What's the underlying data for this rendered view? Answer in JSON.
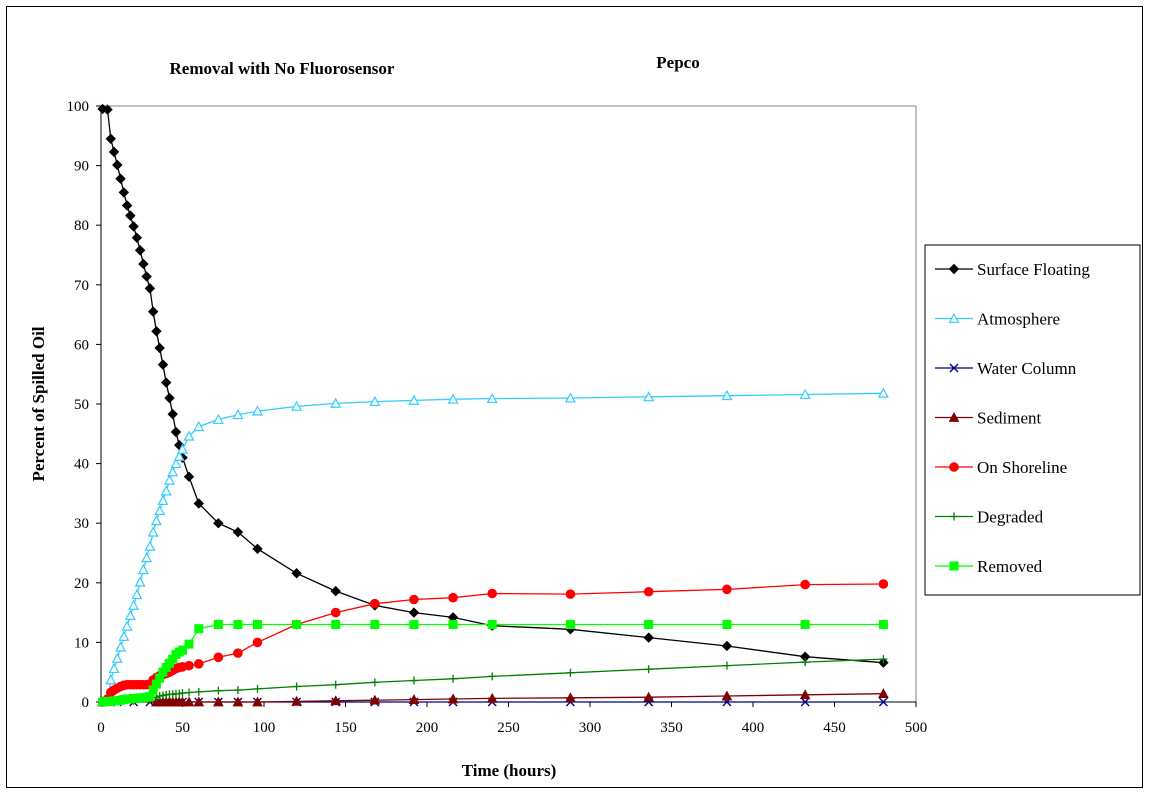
{
  "chart_data": {
    "type": "line",
    "title_left": "Removal with No Fluorosensor",
    "title_right": "Pepco",
    "xlabel": "Time (hours)",
    "ylabel": "Percent of Spilled Oil",
    "xlim": [
      0,
      500
    ],
    "ylim": [
      0,
      100
    ],
    "xticks": [
      0,
      50,
      100,
      150,
      200,
      250,
      300,
      350,
      400,
      450,
      500
    ],
    "yticks": [
      0,
      10,
      20,
      30,
      40,
      50,
      60,
      70,
      80,
      90,
      100
    ],
    "grid": false,
    "legend_position": "right",
    "series": [
      {
        "name": "Surface Floating",
        "color": "#000000",
        "marker": "diamond",
        "points": [
          [
            1,
            99.5
          ],
          [
            4,
            99.4
          ],
          [
            6,
            94.5
          ],
          [
            8,
            92.3
          ],
          [
            10,
            90.1
          ],
          [
            12,
            87.8
          ],
          [
            14,
            85.5
          ],
          [
            16,
            83.3
          ],
          [
            18,
            81.6
          ],
          [
            20,
            79.8
          ],
          [
            22,
            77.9
          ],
          [
            24,
            75.8
          ],
          [
            26,
            73.5
          ],
          [
            28,
            71.4
          ],
          [
            30,
            69.4
          ],
          [
            32,
            65.5
          ],
          [
            34,
            62.2
          ],
          [
            36,
            59.4
          ],
          [
            38,
            56.6
          ],
          [
            40,
            53.6
          ],
          [
            42,
            51.0
          ],
          [
            44,
            48.3
          ],
          [
            46,
            45.3
          ],
          [
            48,
            43.1
          ],
          [
            50,
            41.0
          ],
          [
            54,
            37.8
          ],
          [
            60,
            33.3
          ],
          [
            72,
            30.0
          ],
          [
            84,
            28.5
          ],
          [
            96,
            25.7
          ],
          [
            120,
            21.6
          ],
          [
            144,
            18.6
          ],
          [
            168,
            16.2
          ],
          [
            192,
            15.0
          ],
          [
            216,
            14.2
          ],
          [
            240,
            12.8
          ],
          [
            288,
            12.2
          ],
          [
            336,
            10.8
          ],
          [
            384,
            9.4
          ],
          [
            432,
            7.6
          ],
          [
            480,
            6.6
          ]
        ]
      },
      {
        "name": "Atmosphere",
        "color": "#33ccff",
        "marker": "triangle-open",
        "points": [
          [
            1,
            0
          ],
          [
            4,
            0.5
          ],
          [
            6,
            3.7
          ],
          [
            8,
            5.6
          ],
          [
            10,
            7.3
          ],
          [
            12,
            9.2
          ],
          [
            14,
            11.0
          ],
          [
            16,
            12.7
          ],
          [
            18,
            14.5
          ],
          [
            20,
            16.2
          ],
          [
            22,
            18.0
          ],
          [
            24,
            20.1
          ],
          [
            26,
            22.2
          ],
          [
            28,
            24.2
          ],
          [
            30,
            26.1
          ],
          [
            32,
            28.5
          ],
          [
            34,
            30.4
          ],
          [
            36,
            32.1
          ],
          [
            38,
            33.8
          ],
          [
            40,
            35.4
          ],
          [
            42,
            37.2
          ],
          [
            44,
            38.6
          ],
          [
            46,
            40.0
          ],
          [
            48,
            41.2
          ],
          [
            50,
            42.4
          ],
          [
            54,
            44.6
          ],
          [
            60,
            46.2
          ],
          [
            72,
            47.4
          ],
          [
            84,
            48.2
          ],
          [
            96,
            48.8
          ],
          [
            120,
            49.6
          ],
          [
            144,
            50.1
          ],
          [
            168,
            50.4
          ],
          [
            192,
            50.6
          ],
          [
            216,
            50.8
          ],
          [
            240,
            50.9
          ],
          [
            288,
            51.0
          ],
          [
            336,
            51.2
          ],
          [
            384,
            51.4
          ],
          [
            432,
            51.6
          ],
          [
            480,
            51.8
          ]
        ]
      },
      {
        "name": "Water Column",
        "color": "#000080",
        "marker": "x",
        "points": [
          [
            1,
            0
          ],
          [
            10,
            0
          ],
          [
            20,
            0
          ],
          [
            30,
            0
          ],
          [
            40,
            0
          ],
          [
            50,
            0
          ],
          [
            60,
            0
          ],
          [
            72,
            0
          ],
          [
            84,
            0
          ],
          [
            96,
            0
          ],
          [
            120,
            0
          ],
          [
            144,
            0
          ],
          [
            168,
            0
          ],
          [
            192,
            0
          ],
          [
            216,
            0
          ],
          [
            240,
            0
          ],
          [
            288,
            0
          ],
          [
            336,
            0
          ],
          [
            384,
            0
          ],
          [
            432,
            0
          ],
          [
            480,
            0
          ]
        ]
      },
      {
        "name": "Sediment",
        "color": "#800000",
        "marker": "triangle",
        "points": [
          [
            1,
            0
          ],
          [
            34,
            0
          ],
          [
            36,
            0
          ],
          [
            38,
            0
          ],
          [
            40,
            0
          ],
          [
            42,
            0
          ],
          [
            44,
            0
          ],
          [
            46,
            0
          ],
          [
            48,
            0
          ],
          [
            50,
            0
          ],
          [
            54,
            0
          ],
          [
            60,
            0
          ],
          [
            72,
            0
          ],
          [
            84,
            0
          ],
          [
            96,
            0
          ],
          [
            120,
            0.1
          ],
          [
            144,
            0.2
          ],
          [
            168,
            0.3
          ],
          [
            192,
            0.4
          ],
          [
            216,
            0.5
          ],
          [
            240,
            0.6
          ],
          [
            288,
            0.7
          ],
          [
            336,
            0.8
          ],
          [
            384,
            1.0
          ],
          [
            432,
            1.2
          ],
          [
            480,
            1.4
          ]
        ]
      },
      {
        "name": "On Shoreline",
        "color": "#ff0000",
        "marker": "circle",
        "points": [
          [
            1,
            0
          ],
          [
            4,
            0.5
          ],
          [
            6,
            1.6
          ],
          [
            8,
            2.0
          ],
          [
            10,
            2.3
          ],
          [
            12,
            2.6
          ],
          [
            14,
            2.8
          ],
          [
            16,
            2.9
          ],
          [
            18,
            2.9
          ],
          [
            20,
            2.9
          ],
          [
            22,
            2.9
          ],
          [
            24,
            2.9
          ],
          [
            26,
            2.9
          ],
          [
            28,
            2.9
          ],
          [
            30,
            3.0
          ],
          [
            32,
            3.7
          ],
          [
            34,
            4.1
          ],
          [
            36,
            4.4
          ],
          [
            38,
            4.6
          ],
          [
            40,
            4.8
          ],
          [
            42,
            5.0
          ],
          [
            44,
            5.3
          ],
          [
            46,
            5.6
          ],
          [
            48,
            5.8
          ],
          [
            50,
            5.9
          ],
          [
            54,
            6.1
          ],
          [
            60,
            6.4
          ],
          [
            72,
            7.5
          ],
          [
            84,
            8.2
          ],
          [
            96,
            10.0
          ],
          [
            120,
            13.0
          ],
          [
            144,
            15.0
          ],
          [
            168,
            16.5
          ],
          [
            192,
            17.2
          ],
          [
            216,
            17.5
          ],
          [
            240,
            18.2
          ],
          [
            288,
            18.1
          ],
          [
            336,
            18.5
          ],
          [
            384,
            18.9
          ],
          [
            432,
            19.7
          ],
          [
            480,
            19.8
          ]
        ]
      },
      {
        "name": "Degraded",
        "color": "#008000",
        "marker": "plus",
        "points": [
          [
            1,
            0
          ],
          [
            10,
            0.1
          ],
          [
            20,
            0.2
          ],
          [
            30,
            0.5
          ],
          [
            34,
            0.8
          ],
          [
            36,
            1.0
          ],
          [
            38,
            1.1
          ],
          [
            40,
            1.2
          ],
          [
            42,
            1.3
          ],
          [
            44,
            1.3
          ],
          [
            46,
            1.4
          ],
          [
            48,
            1.4
          ],
          [
            50,
            1.5
          ],
          [
            54,
            1.6
          ],
          [
            60,
            1.7
          ],
          [
            72,
            1.9
          ],
          [
            84,
            2.0
          ],
          [
            96,
            2.2
          ],
          [
            120,
            2.6
          ],
          [
            144,
            2.9
          ],
          [
            168,
            3.3
          ],
          [
            192,
            3.6
          ],
          [
            216,
            3.9
          ],
          [
            240,
            4.3
          ],
          [
            288,
            4.9
          ],
          [
            336,
            5.5
          ],
          [
            384,
            6.1
          ],
          [
            432,
            6.7
          ],
          [
            480,
            7.2
          ]
        ]
      },
      {
        "name": "Removed",
        "color": "#00ff00",
        "marker": "square",
        "points": [
          [
            1,
            0
          ],
          [
            4,
            0.1
          ],
          [
            6,
            0.1
          ],
          [
            8,
            0.2
          ],
          [
            10,
            0.2
          ],
          [
            12,
            0.3
          ],
          [
            14,
            0.4
          ],
          [
            16,
            0.5
          ],
          [
            18,
            0.5
          ],
          [
            20,
            0.6
          ],
          [
            22,
            0.6
          ],
          [
            24,
            0.7
          ],
          [
            26,
            0.7
          ],
          [
            28,
            0.8
          ],
          [
            30,
            0.9
          ],
          [
            32,
            2.0
          ],
          [
            34,
            3.0
          ],
          [
            36,
            4.0
          ],
          [
            38,
            5.0
          ],
          [
            40,
            5.8
          ],
          [
            42,
            6.5
          ],
          [
            44,
            7.2
          ],
          [
            46,
            8.0
          ],
          [
            48,
            8.4
          ],
          [
            50,
            8.7
          ],
          [
            54,
            9.7
          ],
          [
            60,
            12.3
          ],
          [
            72,
            13.0
          ],
          [
            84,
            13.0
          ],
          [
            96,
            13.0
          ],
          [
            120,
            13.0
          ],
          [
            144,
            13.0
          ],
          [
            168,
            13.0
          ],
          [
            192,
            13.0
          ],
          [
            216,
            13.0
          ],
          [
            240,
            13.0
          ],
          [
            288,
            13.0
          ],
          [
            336,
            13.0
          ],
          [
            384,
            13.0
          ],
          [
            432,
            13.0
          ],
          [
            480,
            13.0
          ]
        ]
      }
    ]
  }
}
